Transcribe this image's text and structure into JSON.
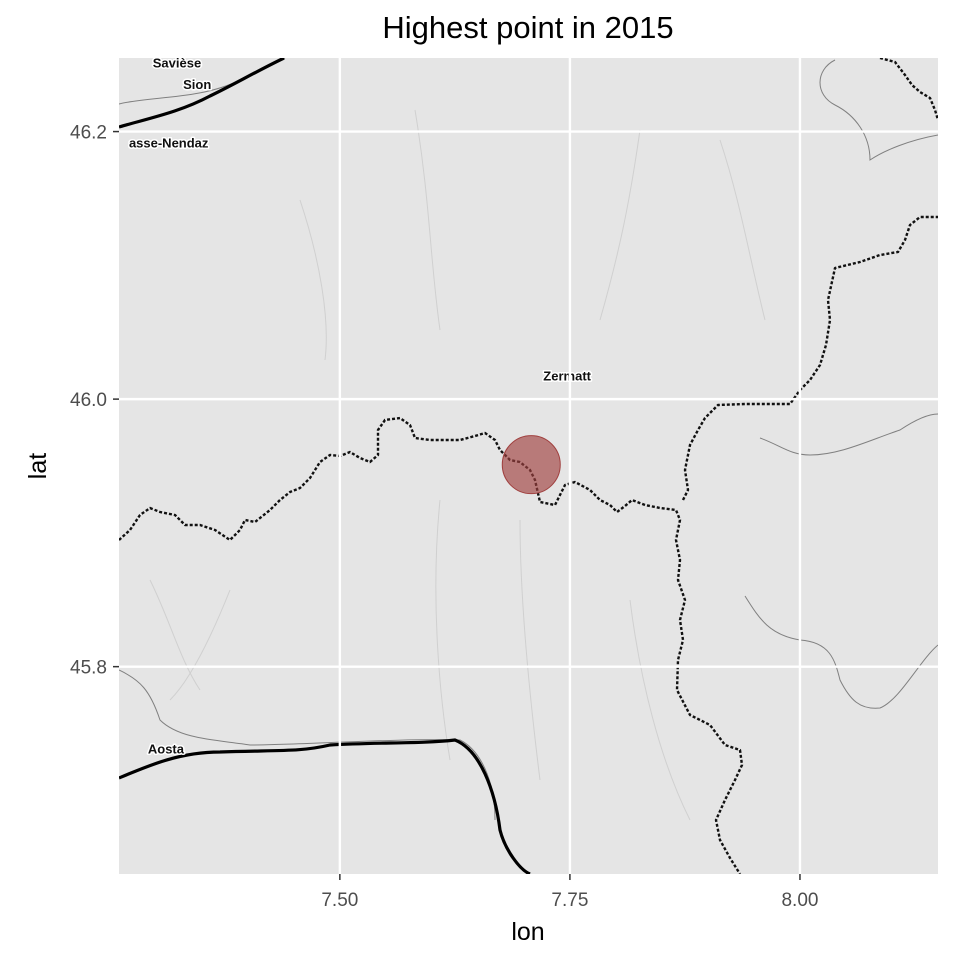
{
  "chart_data": {
    "type": "scatter",
    "title": "Highest point in 2015",
    "xlabel": "lon",
    "ylabel": "lat",
    "xlim": [
      7.26,
      8.15
    ],
    "ylim": [
      45.645,
      46.255
    ],
    "x_ticks": [
      {
        "value": 7.5,
        "label": "7.50"
      },
      {
        "value": 7.75,
        "label": "7.75"
      },
      {
        "value": 8.0,
        "label": "8.00"
      }
    ],
    "y_ticks": [
      {
        "value": 45.8,
        "label": "45.8"
      },
      {
        "value": 46.0,
        "label": "46.0"
      },
      {
        "value": 46.2,
        "label": "46.2"
      }
    ],
    "grid": true,
    "points": [
      {
        "lon": 7.708,
        "lat": 45.951,
        "color": "#a0403f"
      }
    ],
    "places": [
      {
        "name": "Savièse",
        "lon": 7.323,
        "lat": 46.248
      },
      {
        "name": "Sion",
        "lon": 7.345,
        "lat": 46.232
      },
      {
        "name": "asse-Nendaz",
        "lon": 7.314,
        "lat": 46.188
      },
      {
        "name": "Zermatt",
        "lon": 7.747,
        "lat": 46.014
      },
      {
        "name": "Aosta",
        "lon": 7.311,
        "lat": 45.735
      }
    ]
  },
  "colors": {
    "panel_background": "#e5e5e5",
    "grid": "#ffffff",
    "border_line": "#111111",
    "road": "#000000",
    "river": "#808080"
  }
}
